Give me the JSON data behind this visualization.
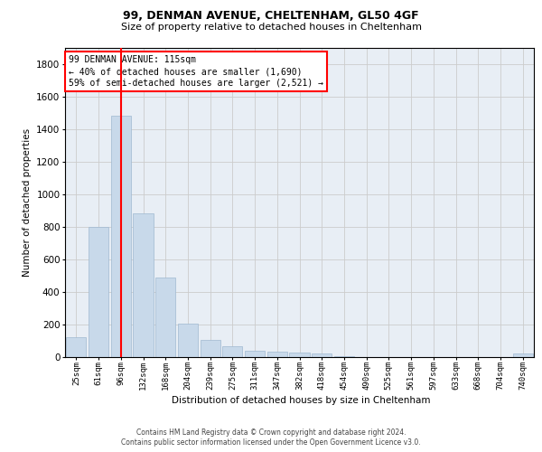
{
  "title1": "99, DENMAN AVENUE, CHELTENHAM, GL50 4GF",
  "title2": "Size of property relative to detached houses in Cheltenham",
  "xlabel": "Distribution of detached houses by size in Cheltenham",
  "ylabel": "Number of detached properties",
  "footer1": "Contains HM Land Registry data © Crown copyright and database right 2024.",
  "footer2": "Contains public sector information licensed under the Open Government Licence v3.0.",
  "bar_color": "#c8d9ea",
  "bar_edgecolor": "#9fb8d0",
  "categories": [
    "25sqm",
    "61sqm",
    "96sqm",
    "132sqm",
    "168sqm",
    "204sqm",
    "239sqm",
    "275sqm",
    "311sqm",
    "347sqm",
    "382sqm",
    "418sqm",
    "454sqm",
    "490sqm",
    "525sqm",
    "561sqm",
    "597sqm",
    "633sqm",
    "668sqm",
    "704sqm",
    "740sqm"
  ],
  "values": [
    120,
    800,
    1480,
    880,
    490,
    205,
    105,
    65,
    40,
    35,
    30,
    20,
    5,
    0,
    0,
    0,
    0,
    0,
    0,
    0,
    20
  ],
  "property_label": "99 DENMAN AVENUE: 115sqm",
  "annotation_line1": "← 40% of detached houses are smaller (1,690)",
  "annotation_line2": "59% of semi-detached houses are larger (2,521) →",
  "vline_x": 2,
  "ylim": [
    0,
    1900
  ],
  "yticks": [
    0,
    200,
    400,
    600,
    800,
    1000,
    1200,
    1400,
    1600,
    1800
  ],
  "annotation_box_color": "white",
  "annotation_box_edgecolor": "red",
  "vline_color": "red",
  "grid_color": "#cccccc",
  "bg_color": "#e8eef5"
}
